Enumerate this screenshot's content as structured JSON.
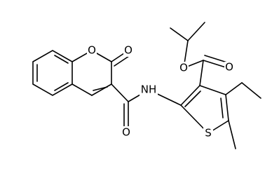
{
  "nodes": [
    {
      "label": "O"
    },
    {
      "label": "O"
    },
    {
      "label": "NH"
    },
    {
      "label": "O"
    },
    {
      "label": "O"
    },
    {
      "label": "O"
    },
    {
      "label": "S"
    }
  ]
}
